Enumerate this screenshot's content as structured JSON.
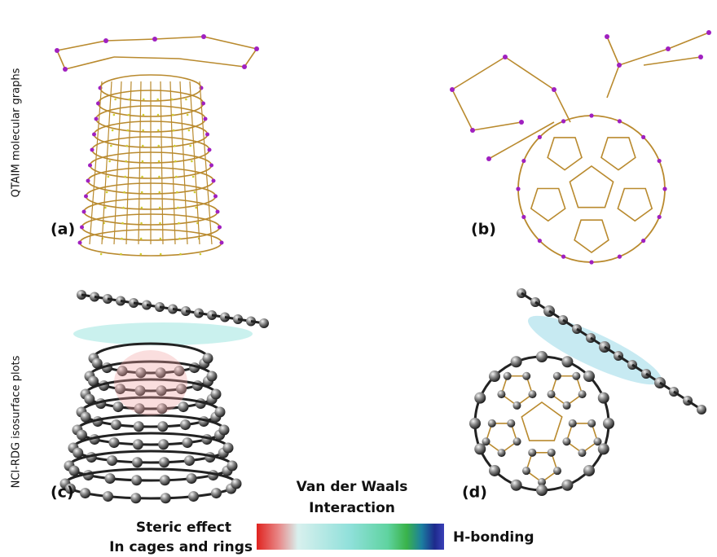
{
  "labels": {
    "row_1": "QTAIM molecular graphs",
    "row_2": "NCI-RDG isosurface plots"
  },
  "panels": [
    "(a)",
    "(b)",
    "(c)",
    "(d)"
  ],
  "legend": {
    "center_line_1": "Van der Waals",
    "center_line_2": "Interaction",
    "left_line_1": "Steric effect",
    "left_line_2": "In cages and rings",
    "right": "H-bonding"
  }
}
